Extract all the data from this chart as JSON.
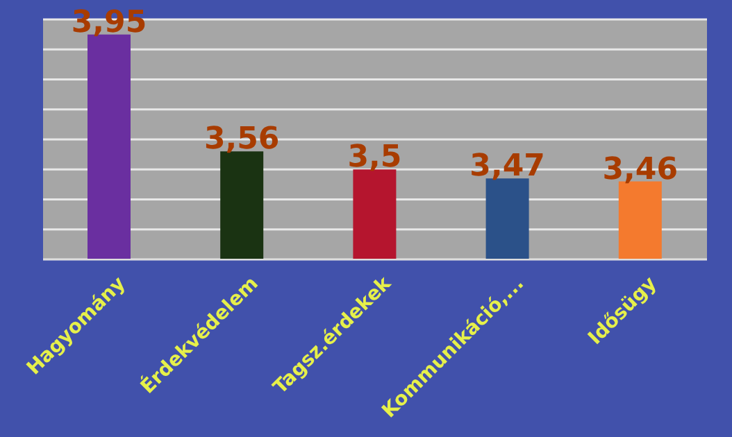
{
  "chart_data": {
    "type": "bar",
    "categories": [
      "Hagyomány",
      "Érdekvédelem",
      "Tagsz.érdekek",
      "Kommunikáció,...",
      "Idősügy"
    ],
    "values": [
      3.95,
      3.56,
      3.5,
      3.47,
      3.46
    ],
    "colors": [
      "#6a2fa0",
      "#1a3312",
      "#b5152e",
      "#2b5189",
      "#f47a2e"
    ],
    "value_labels": [
      "3,95",
      "3,56",
      "3,5",
      "3,47",
      "3,46"
    ],
    "ylim": [
      3.2,
      4.0
    ],
    "tick_labels": "x",
    "grid": "y"
  }
}
